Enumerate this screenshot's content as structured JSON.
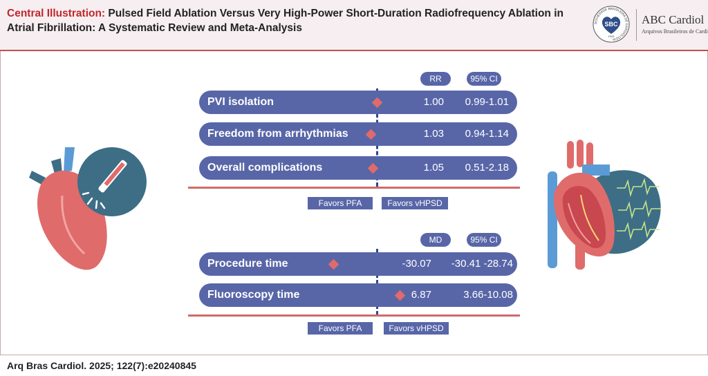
{
  "header": {
    "title_lead": "Central Illustration:",
    "title_rest": " Pulsed Field Ablation Versus Very High-Power Short-Duration Radiofrequency Ablation in Atrial Fibrillation: A Systematic Review and Meta-Analysis",
    "logo": {
      "badge_text": "SBC",
      "badge_ring_text": "SOCIEDADE BRASILEIRA DE CARDIOLOGIA",
      "badge_year": "1943",
      "journal_name": "ABC Cardiol",
      "journal_subtitle": "Arquivos Brasileiros de Cardiologia"
    }
  },
  "panel1": {
    "headers": {
      "measure": "RR",
      "ci": "95% CI"
    },
    "rows": [
      {
        "label": "PVI isolation",
        "value": "1.00",
        "ci": "0.99-1.01",
        "effect": 1.0
      },
      {
        "label": "Freedom from arrhythmias",
        "value": "1.03",
        "ci": "0.94-1.14",
        "effect": 1.03
      },
      {
        "label": "Overall complications",
        "value": "1.05",
        "ci": "0.51-2.18",
        "effect": 1.05
      }
    ],
    "favors_left": "Favors PFA",
    "favors_right": "Favors  vHPSD"
  },
  "panel2": {
    "headers": {
      "measure": "MD",
      "ci": "95% CI"
    },
    "rows": [
      {
        "label": "Procedure time",
        "value": "-30.07",
        "ci": "-30.41 -28.74",
        "effect": -30.07
      },
      {
        "label": "Fluoroscopy time",
        "value": "6.87",
        "ci": "3.66-10.08",
        "effect": 6.87
      }
    ],
    "favors_left": "Favors PFA",
    "favors_right": "Favors  vHPSD"
  },
  "footer": {
    "citation": "Arq Bras Cardiol. 2025; 122(7):e20240845"
  },
  "colors": {
    "pill": "#5866a8",
    "diamond": "#e06b6b",
    "accent_red": "#c0272d",
    "separator": "#cf6a6a",
    "heart": "#e06b6b",
    "teal": "#3d6e86",
    "vessel_blue": "#5b9bd5"
  },
  "illustrations": {
    "left": "heart-with-ablation-catheter-icon",
    "right": "heart-cross-section-with-ecg-icon"
  }
}
